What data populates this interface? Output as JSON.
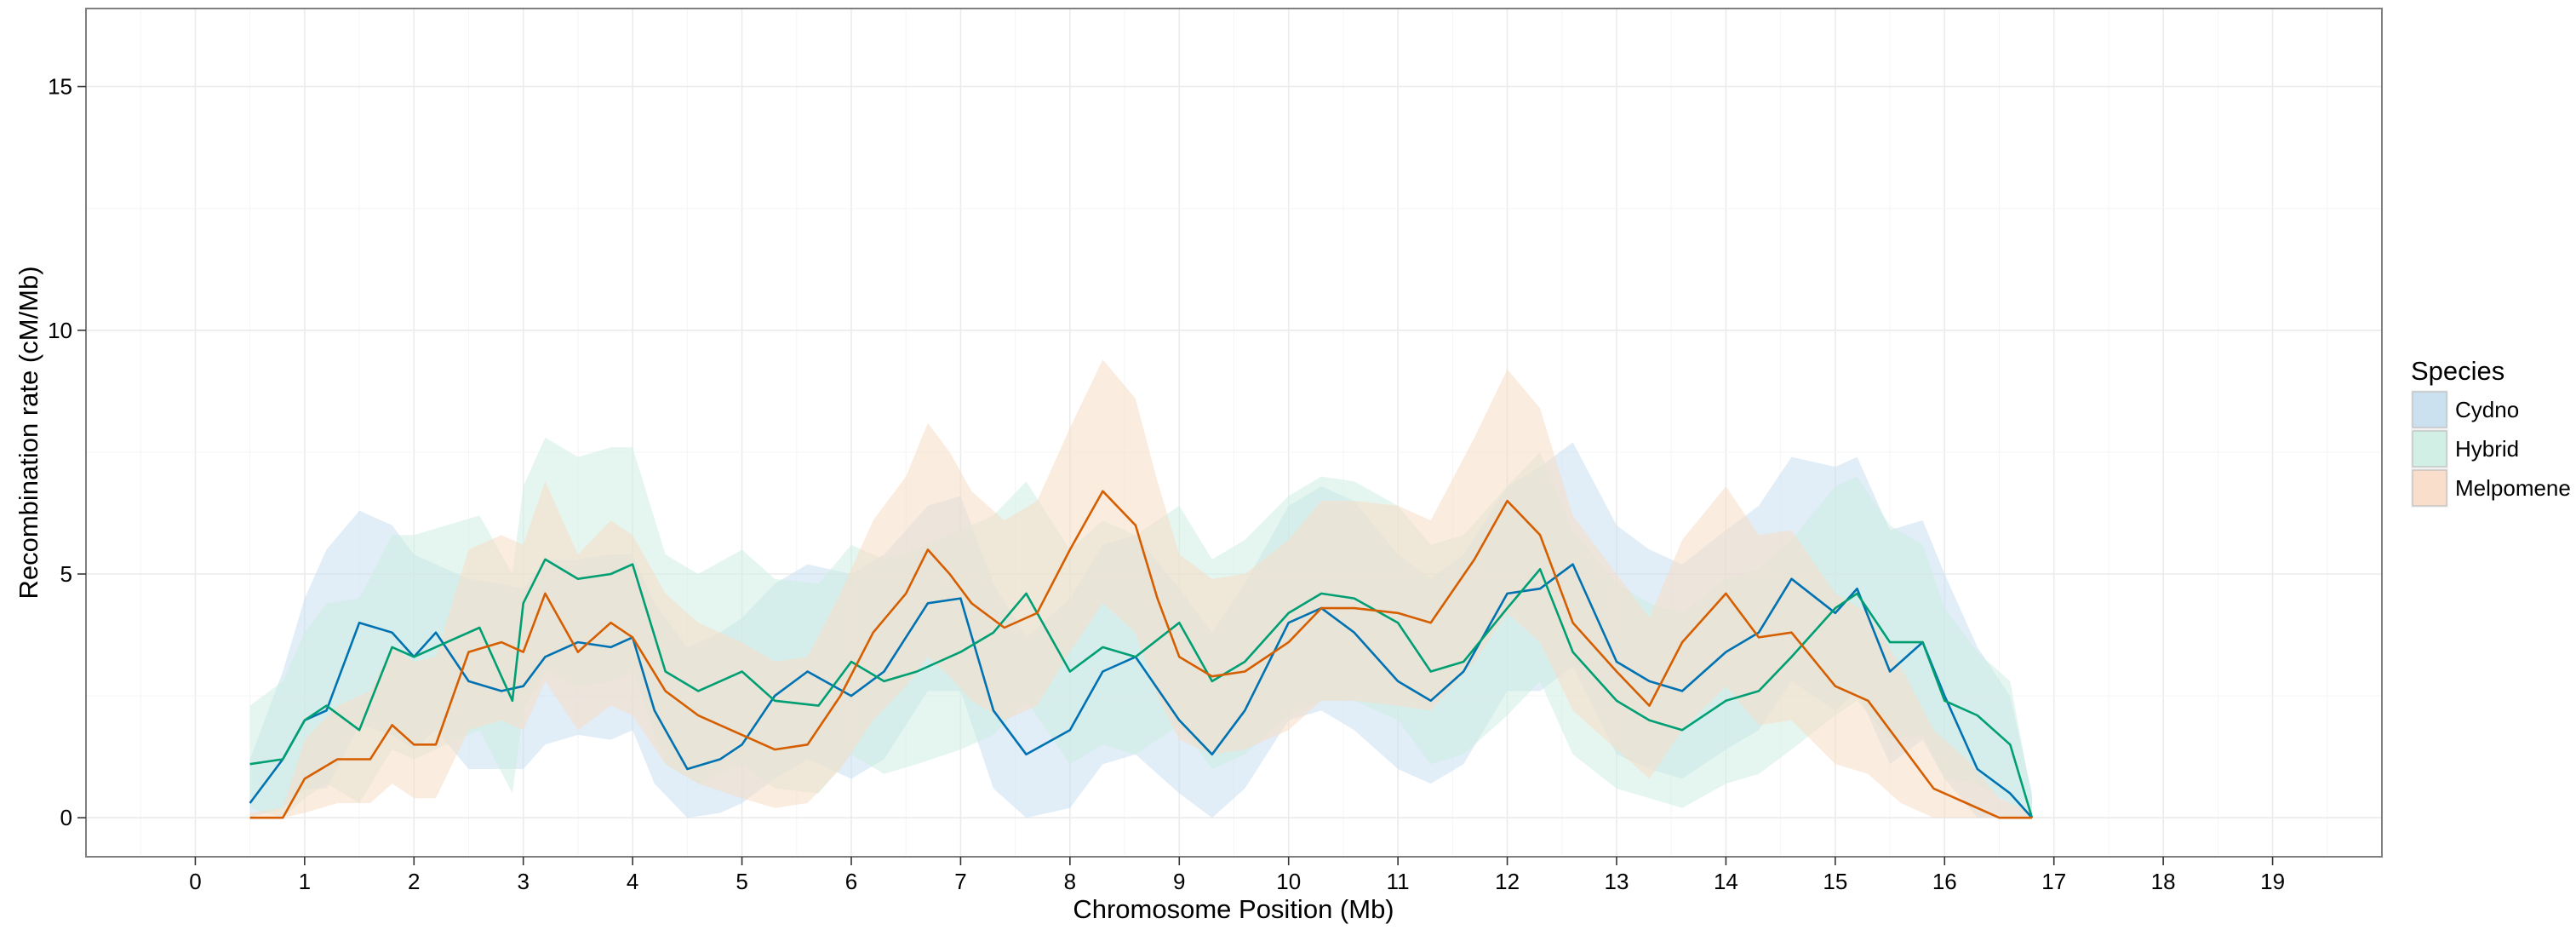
{
  "chart_data": {
    "type": "line",
    "xlabel": "Chromosome Position (Mb)",
    "ylabel": "Recombination rate (cM/Mb)",
    "xlim": [
      -1,
      20
    ],
    "ylim": [
      -0.8,
      16.6
    ],
    "x_ticks": [
      0,
      1,
      2,
      3,
      4,
      5,
      6,
      7,
      8,
      9,
      10,
      11,
      12,
      13,
      14,
      15,
      16,
      17,
      18,
      19
    ],
    "y_ticks": [
      0,
      5,
      10,
      15
    ],
    "grid": true,
    "legend": {
      "title": "Species",
      "position": "right"
    },
    "series": [
      {
        "name": "Cydno",
        "color": "#0072B2",
        "fill": "#c8dff0",
        "x": [
          0.5,
          0.8,
          1.0,
          1.2,
          1.5,
          1.8,
          2.0,
          2.2,
          2.5,
          2.8,
          3.0,
          3.2,
          3.5,
          3.8,
          4.0,
          4.2,
          4.5,
          4.8,
          5.0,
          5.3,
          5.6,
          6.0,
          6.3,
          6.7,
          7.0,
          7.3,
          7.6,
          8.0,
          8.3,
          8.6,
          9.0,
          9.3,
          9.6,
          10.0,
          10.3,
          10.6,
          11.0,
          11.3,
          11.6,
          12.0,
          12.3,
          12.6,
          13.0,
          13.3,
          13.6,
          14.0,
          14.3,
          14.6,
          15.0,
          15.2,
          15.5,
          15.8,
          16.0,
          16.3,
          16.6,
          16.8
        ],
        "y": [
          0.3,
          1.2,
          2.0,
          2.2,
          4.0,
          3.8,
          3.3,
          3.8,
          2.8,
          2.6,
          2.7,
          3.3,
          3.6,
          3.5,
          3.7,
          2.2,
          1.0,
          1.2,
          1.5,
          2.5,
          3.0,
          2.5,
          3.0,
          4.4,
          4.5,
          2.2,
          1.3,
          1.8,
          3.0,
          3.3,
          2.0,
          1.3,
          2.2,
          4.0,
          4.3,
          3.8,
          2.8,
          2.4,
          3.0,
          4.6,
          4.7,
          5.2,
          3.2,
          2.8,
          2.6,
          3.4,
          3.8,
          4.9,
          4.2,
          4.7,
          3.0,
          3.6,
          2.5,
          1.0,
          0.5,
          0.0
        ],
        "upper": [
          1.2,
          3.0,
          4.5,
          5.5,
          6.3,
          6.0,
          5.4,
          5.2,
          4.9,
          4.8,
          4.7,
          5.3,
          5.3,
          5.4,
          5.4,
          4.4,
          3.5,
          3.8,
          4.1,
          4.8,
          5.2,
          5.0,
          5.4,
          6.4,
          6.6,
          4.8,
          3.7,
          4.5,
          5.6,
          5.8,
          4.7,
          3.8,
          4.8,
          6.4,
          6.8,
          6.5,
          5.4,
          4.9,
          5.4,
          6.8,
          7.2,
          7.7,
          6.0,
          5.5,
          5.2,
          5.9,
          6.4,
          7.4,
          7.2,
          7.4,
          5.9,
          6.1,
          5.0,
          3.5,
          2.5,
          0.5
        ],
        "lower": [
          0.0,
          0.2,
          0.6,
          0.6,
          1.9,
          1.7,
          1.4,
          1.8,
          1.0,
          1.0,
          1.0,
          1.5,
          1.7,
          1.6,
          1.8,
          0.7,
          0.0,
          0.1,
          0.3,
          0.8,
          1.2,
          0.8,
          1.2,
          2.6,
          2.6,
          0.6,
          0.0,
          0.2,
          1.1,
          1.3,
          0.5,
          0.0,
          0.6,
          2.0,
          2.2,
          1.8,
          1.0,
          0.7,
          1.1,
          2.6,
          2.6,
          3.1,
          1.3,
          1.0,
          0.8,
          1.4,
          1.8,
          2.8,
          2.2,
          2.6,
          1.1,
          1.6,
          0.8,
          0.0,
          0.0,
          0.0
        ]
      },
      {
        "name": "Hybrid",
        "color": "#009E73",
        "fill": "#cdeee2",
        "x": [
          0.5,
          0.8,
          1.0,
          1.2,
          1.5,
          1.8,
          2.0,
          2.3,
          2.6,
          2.9,
          3.0,
          3.2,
          3.5,
          3.8,
          4.0,
          4.3,
          4.6,
          5.0,
          5.3,
          5.7,
          6.0,
          6.3,
          6.6,
          7.0,
          7.3,
          7.6,
          8.0,
          8.3,
          8.6,
          9.0,
          9.3,
          9.6,
          10.0,
          10.3,
          10.6,
          11.0,
          11.3,
          11.6,
          12.0,
          12.3,
          12.6,
          13.0,
          13.3,
          13.6,
          14.0,
          14.3,
          14.6,
          15.0,
          15.2,
          15.5,
          15.8,
          16.0,
          16.3,
          16.6,
          16.8
        ],
        "y": [
          1.1,
          1.2,
          2.0,
          2.3,
          1.8,
          3.5,
          3.3,
          3.6,
          3.9,
          2.4,
          4.4,
          5.3,
          4.9,
          5.0,
          5.2,
          3.0,
          2.6,
          3.0,
          2.4,
          2.3,
          3.2,
          2.8,
          3.0,
          3.4,
          3.8,
          4.6,
          3.0,
          3.5,
          3.3,
          4.0,
          2.8,
          3.2,
          4.2,
          4.6,
          4.5,
          4.0,
          3.0,
          3.2,
          4.3,
          5.1,
          3.4,
          2.4,
          2.0,
          1.8,
          2.4,
          2.6,
          3.3,
          4.3,
          4.6,
          3.6,
          3.6,
          2.4,
          2.1,
          1.5,
          0.0
        ],
        "upper": [
          2.3,
          2.8,
          3.8,
          4.4,
          4.5,
          5.8,
          5.8,
          6.0,
          6.2,
          5.0,
          6.8,
          7.8,
          7.4,
          7.6,
          7.6,
          5.4,
          5.0,
          5.5,
          4.9,
          4.8,
          5.6,
          5.3,
          5.5,
          5.9,
          6.2,
          6.9,
          5.5,
          6.1,
          5.8,
          6.4,
          5.3,
          5.7,
          6.6,
          7.0,
          6.9,
          6.4,
          5.6,
          5.8,
          6.8,
          7.5,
          5.9,
          4.8,
          4.4,
          4.2,
          4.9,
          5.1,
          5.7,
          6.8,
          7.0,
          6.0,
          5.6,
          4.3,
          3.4,
          2.8,
          0.4
        ],
        "lower": [
          0.2,
          0.0,
          0.4,
          0.7,
          0.3,
          1.4,
          1.2,
          1.5,
          1.8,
          0.5,
          2.2,
          3.0,
          2.7,
          2.8,
          3.0,
          1.1,
          0.7,
          1.1,
          0.6,
          0.5,
          1.3,
          0.9,
          1.1,
          1.4,
          1.7,
          2.4,
          1.1,
          1.5,
          1.3,
          1.9,
          1.0,
          1.3,
          2.1,
          2.4,
          2.4,
          2.0,
          1.1,
          1.3,
          2.1,
          2.8,
          1.3,
          0.6,
          0.4,
          0.2,
          0.7,
          0.9,
          1.4,
          2.1,
          2.4,
          1.6,
          1.7,
          0.8,
          0.7,
          0.3,
          0.0
        ]
      },
      {
        "name": "Melpomene",
        "color": "#D55E00",
        "fill": "#f8dcc6",
        "x": [
          0.5,
          0.8,
          1.0,
          1.3,
          1.6,
          1.8,
          2.0,
          2.2,
          2.5,
          2.8,
          3.0,
          3.2,
          3.5,
          3.8,
          4.0,
          4.3,
          4.6,
          5.0,
          5.3,
          5.6,
          5.9,
          6.2,
          6.5,
          6.7,
          6.9,
          7.1,
          7.4,
          7.7,
          8.0,
          8.3,
          8.6,
          8.8,
          9.0,
          9.3,
          9.6,
          10.0,
          10.3,
          10.6,
          11.0,
          11.3,
          11.7,
          12.0,
          12.3,
          12.6,
          13.0,
          13.3,
          13.6,
          14.0,
          14.3,
          14.6,
          15.0,
          15.3,
          15.6,
          15.9,
          16.2,
          16.5,
          16.8
        ],
        "y": [
          0.0,
          0.0,
          0.8,
          1.2,
          1.2,
          1.9,
          1.5,
          1.5,
          3.4,
          3.6,
          3.4,
          4.6,
          3.4,
          4.0,
          3.7,
          2.6,
          2.1,
          1.7,
          1.4,
          1.5,
          2.5,
          3.8,
          4.6,
          5.5,
          5.0,
          4.4,
          3.9,
          4.2,
          5.5,
          6.7,
          6.0,
          4.5,
          3.3,
          2.9,
          3.0,
          3.6,
          4.3,
          4.3,
          4.2,
          4.0,
          5.3,
          6.5,
          5.8,
          4.0,
          3.0,
          2.3,
          3.6,
          4.6,
          3.7,
          3.8,
          2.7,
          2.4,
          1.5,
          0.6,
          0.3,
          0.0,
          0.0
        ],
        "upper": [
          0.1,
          0.2,
          1.6,
          2.3,
          2.6,
          3.5,
          3.2,
          3.3,
          5.5,
          5.8,
          5.6,
          6.9,
          5.4,
          6.1,
          5.8,
          4.6,
          4.0,
          3.6,
          3.2,
          3.3,
          4.6,
          6.1,
          7.0,
          8.1,
          7.5,
          6.7,
          6.1,
          6.5,
          8.0,
          9.4,
          8.6,
          6.9,
          5.4,
          4.9,
          5.0,
          5.7,
          6.5,
          6.5,
          6.4,
          6.1,
          7.8,
          9.2,
          8.4,
          6.2,
          5.0,
          4.1,
          5.7,
          6.8,
          5.8,
          5.9,
          4.6,
          4.2,
          3.1,
          1.8,
          1.2,
          0.4,
          0.1
        ],
        "lower": [
          0.0,
          0.0,
          0.1,
          0.3,
          0.3,
          0.7,
          0.4,
          0.4,
          1.8,
          2.0,
          1.8,
          2.8,
          1.8,
          2.3,
          2.1,
          1.1,
          0.7,
          0.4,
          0.2,
          0.3,
          1.0,
          2.0,
          2.7,
          3.3,
          2.9,
          2.4,
          2.0,
          2.3,
          3.4,
          4.4,
          3.8,
          2.5,
          1.6,
          1.3,
          1.4,
          1.8,
          2.4,
          2.4,
          2.3,
          2.2,
          3.2,
          4.2,
          3.6,
          2.2,
          1.4,
          0.8,
          1.8,
          2.7,
          1.9,
          2.0,
          1.1,
          0.9,
          0.3,
          0.0,
          0.0,
          0.0,
          0.0
        ]
      }
    ]
  }
}
